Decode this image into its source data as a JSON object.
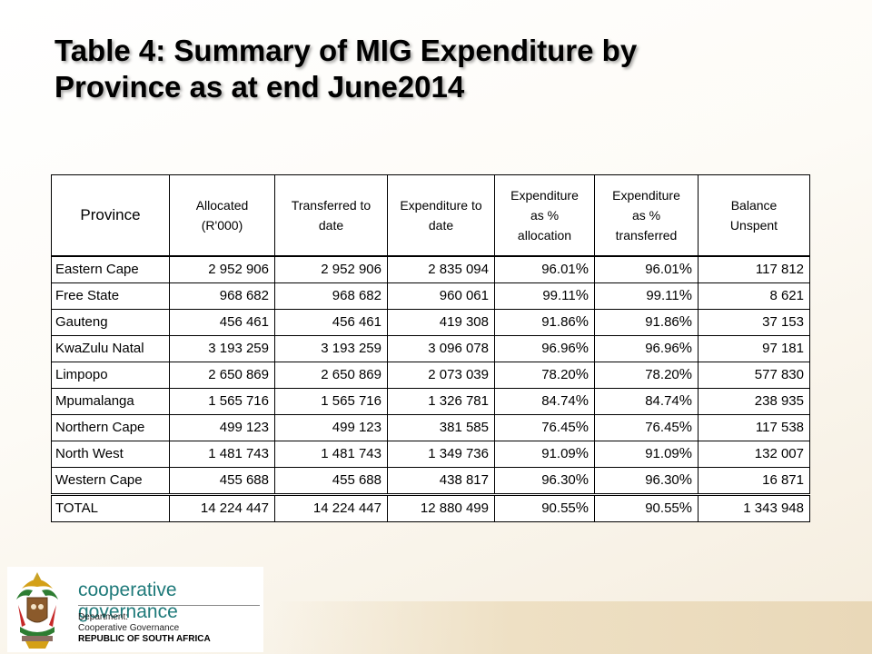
{
  "title": {
    "line1": "Table 4: Summary of MIG Expenditure by",
    "line2": "Province as at end June2014"
  },
  "table": {
    "headers": [
      [
        "Province"
      ],
      [
        "Allocated",
        "(R'000)"
      ],
      [
        "Transferred to",
        "date"
      ],
      [
        "Expenditure to",
        "date"
      ],
      [
        "Expenditure",
        "as %",
        "allocation"
      ],
      [
        "Expenditure",
        "as %",
        "transferred"
      ],
      [
        "Balance",
        "Unspent"
      ]
    ],
    "rows": [
      [
        "Eastern Cape",
        "2 952 906",
        "2 952 906",
        "2 835 094",
        "96.01",
        "96.01",
        "117 812"
      ],
      [
        "Free State",
        "968 682",
        "968 682",
        "960 061",
        "99.11",
        "99.11",
        "8 621"
      ],
      [
        "Gauteng",
        "456 461",
        "456 461",
        "419 308",
        "91.86",
        "91.86",
        "37 153"
      ],
      [
        "KwaZulu Natal",
        "3 193 259",
        "3 193 259",
        "3 096 078",
        "96.96",
        "96.96",
        "97 181"
      ],
      [
        "Limpopo",
        "2 650 869",
        "2 650 869",
        "2 073 039",
        "78.20",
        "78.20",
        "577 830"
      ],
      [
        "Mpumalanga",
        "1 565 716",
        "1 565 716",
        "1 326 781",
        "84.74",
        "84.74",
        "238 935"
      ],
      [
        "Northern Cape",
        "499 123",
        "499 123",
        "381 585",
        "76.45",
        "76.45",
        "117 538"
      ],
      [
        "North West",
        "1 481 743",
        "1 481 743",
        "1 349 736",
        "91.09",
        "91.09",
        "132 007"
      ],
      [
        "Western Cape",
        "455 688",
        "455 688",
        "438 817",
        "96.30",
        "96.30",
        "16 871"
      ]
    ],
    "total": [
      "TOTAL",
      "14 224 447",
      "14 224 447",
      "12 880 499",
      "90.55",
      "90.55",
      "1 343 948"
    ],
    "pct_unit": "%"
  },
  "footer": {
    "brand": "cooperative governance",
    "dept_line1": "Department:",
    "dept_line2": "Cooperative Governance",
    "dept_line3": "REPUBLIC OF SOUTH AFRICA",
    "crest_icon": "coat-of-arms-icon"
  }
}
